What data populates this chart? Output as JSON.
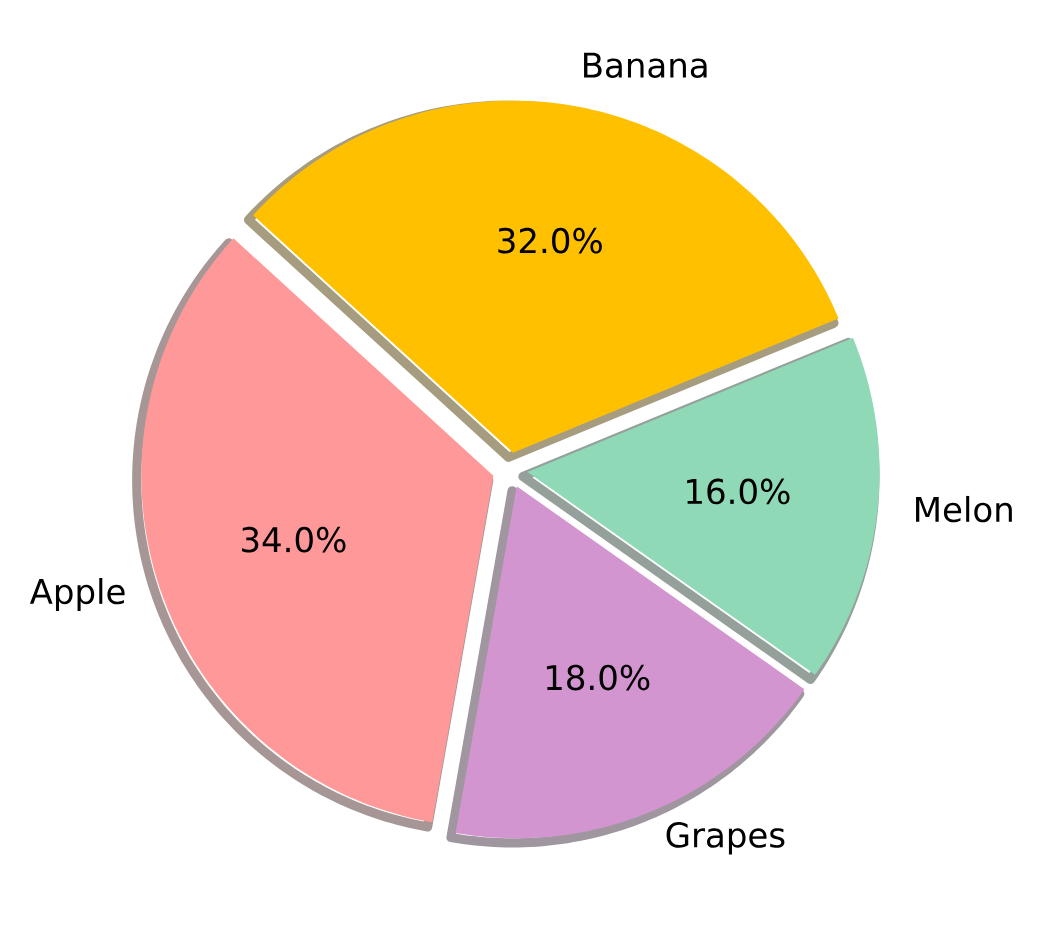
{
  "chart_data": {
    "type": "pie",
    "categories": [
      "Apple",
      "Banana",
      "Melon",
      "Grapes"
    ],
    "values": [
      34,
      32,
      16,
      18
    ],
    "colors": [
      "#ff9999",
      "#ffc000",
      "#8fd9b6",
      "#d395d0"
    ],
    "value_labels": [
      "34.0%",
      "32.0%",
      "16.0%",
      "18.0%"
    ]
  }
}
